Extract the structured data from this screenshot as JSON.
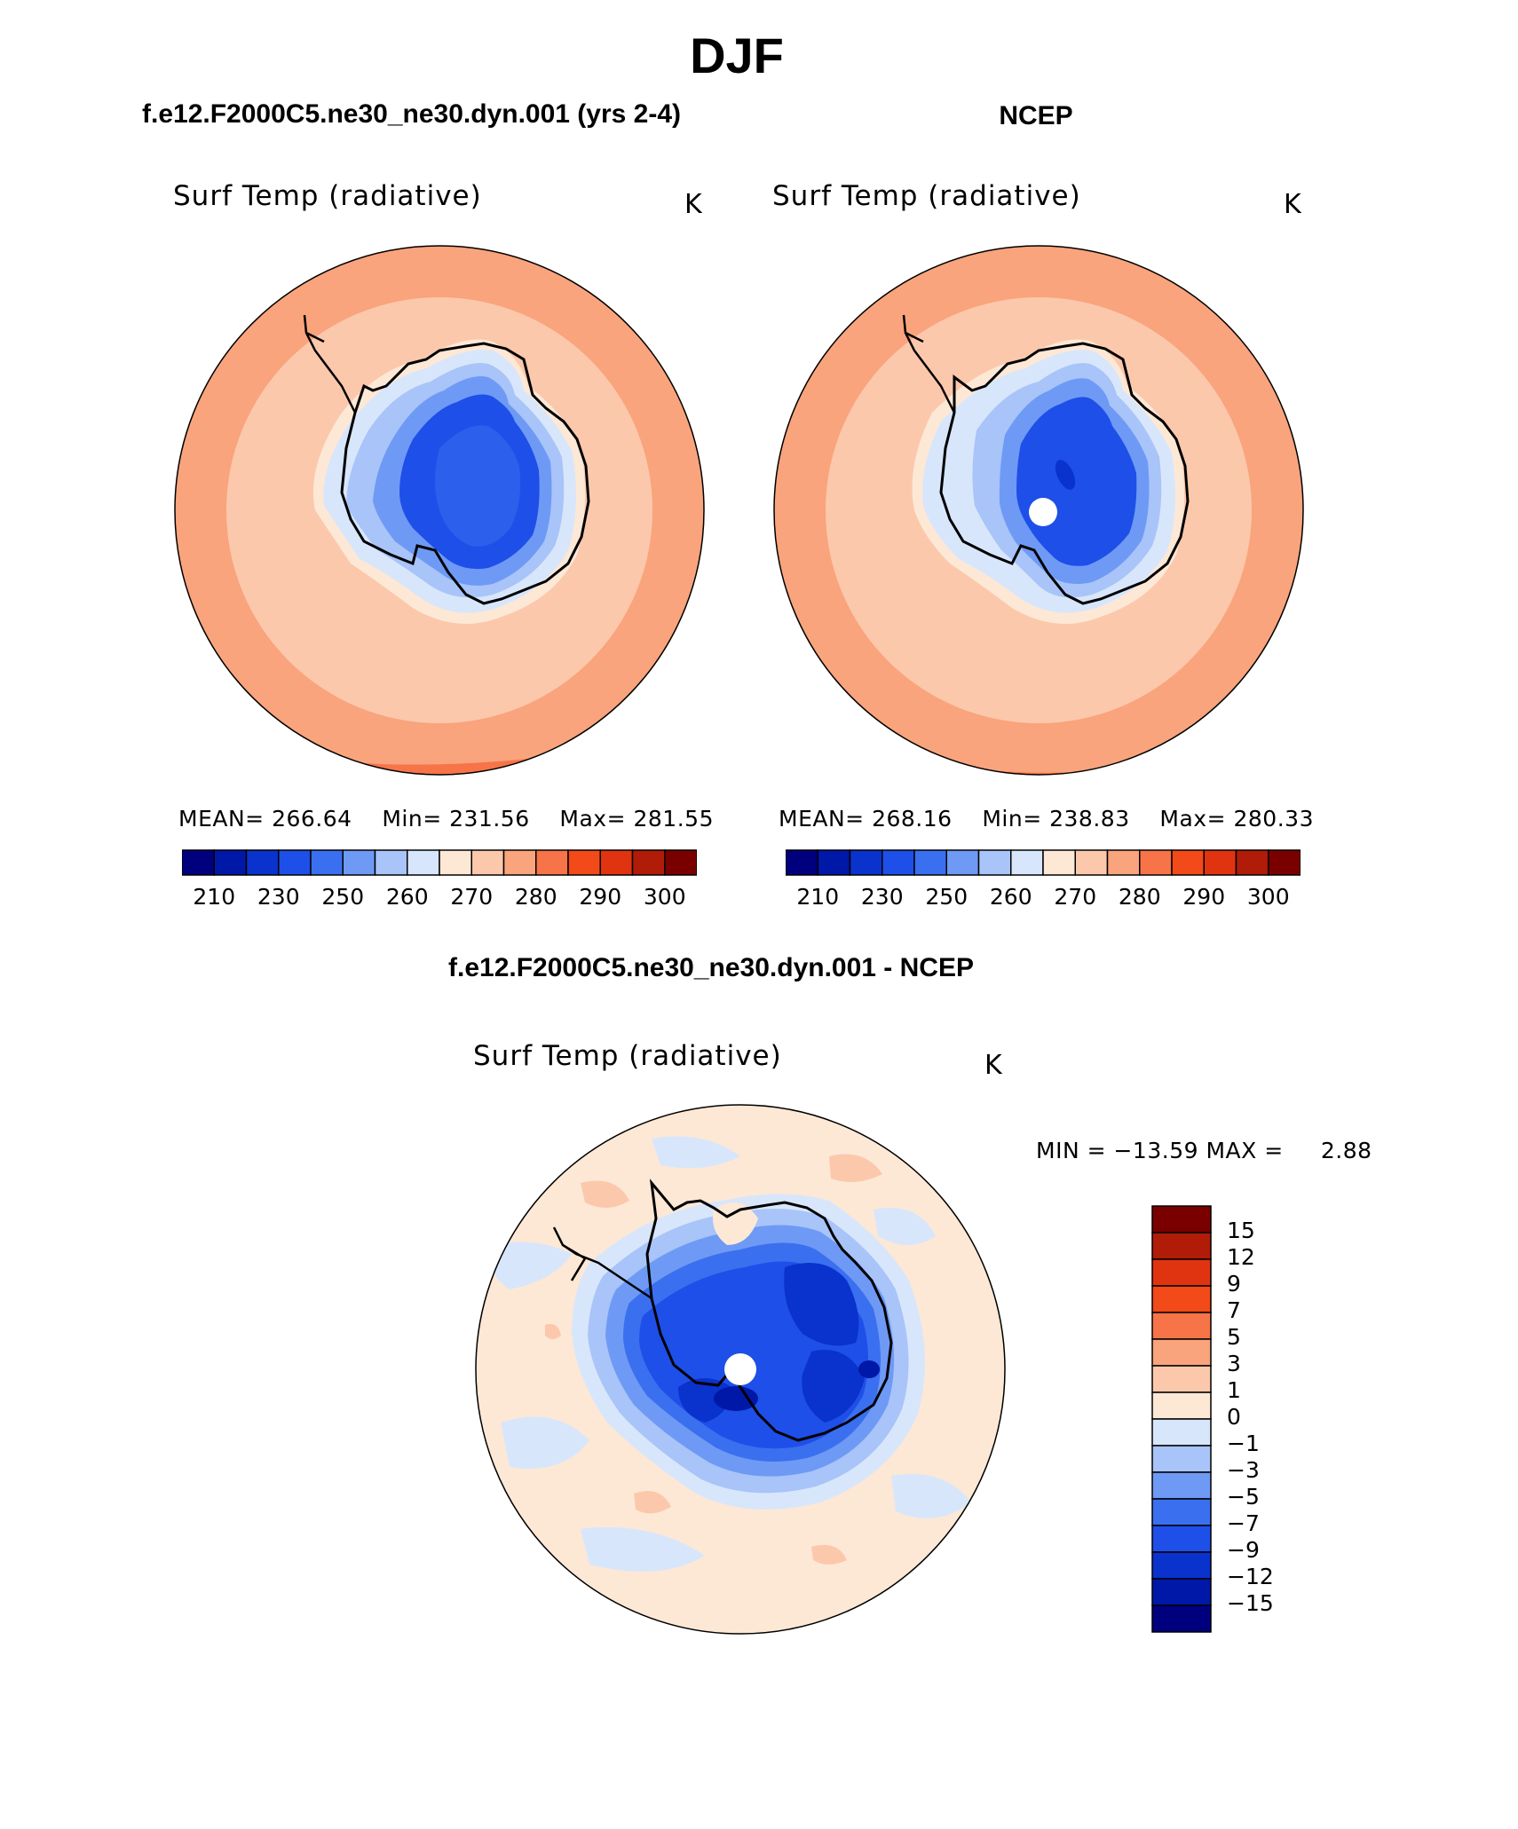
{
  "page": {
    "title": "DJF",
    "panel_left_title": "f.e12.F2000C5.ne30_ne30.dyn.001 (yrs 2-4)",
    "panel_right_title": "NCEP",
    "panel_diff_title": "f.e12.F2000C5.ne30_ne30.dyn.001 - NCEP"
  },
  "panels": {
    "left": {
      "variable": "Surf Temp (radiative)",
      "units": "K",
      "mean_label": "MEAN=",
      "mean": "266.64",
      "min_label": "Min=",
      "min": "231.56",
      "max_label": "Max=",
      "max": "281.55"
    },
    "right": {
      "variable": "Surf Temp (radiative)",
      "units": "K",
      "mean_label": "MEAN=",
      "mean": "268.16",
      "min_label": "Min=",
      "min": "238.83",
      "max_label": "Max=",
      "max": "280.33"
    },
    "diff": {
      "variable": "Surf Temp (radiative)",
      "units": "K",
      "minmax_text": "MIN = −13.59 MAX =",
      "max_value": "2.88"
    }
  },
  "colorbars": {
    "absolute": {
      "colors": [
        "#00007f",
        "#0018a8",
        "#0a32cc",
        "#1e4fe8",
        "#3a6ff0",
        "#6e9af5",
        "#a8c4f8",
        "#d8e6fb",
        "#fde8d6",
        "#fcc8ac",
        "#f9a47c",
        "#f77448",
        "#f24a18",
        "#e03410",
        "#b01c08",
        "#7a0000"
      ],
      "labels": [
        "210",
        "230",
        "250",
        "260",
        "270",
        "280",
        "290",
        "300"
      ]
    },
    "difference": {
      "colors": [
        "#00007f",
        "#0018a8",
        "#0a32cc",
        "#1e4fe8",
        "#3a6ff0",
        "#6e9af5",
        "#a8c4f8",
        "#d8e6fb",
        "#fde8d6",
        "#fcc8ac",
        "#f9a47c",
        "#f77448",
        "#f24a18",
        "#e03410",
        "#b01c08",
        "#7a0000"
      ],
      "labels": [
        "15",
        "12",
        "9",
        "7",
        "5",
        "3",
        "1",
        "0",
        "−1",
        "−3",
        "−5",
        "−7",
        "−9",
        "−12",
        "−15"
      ]
    }
  },
  "colors": {
    "ocean_warm": "#fcc8ac",
    "ocean_warmer": "#f9a47c",
    "ocean_edge": "#f77448",
    "ice_dark": "#1e4fe8",
    "ice_mid": "#3a6ff0",
    "ice_light": "#a8c4f8",
    "ice_pale": "#d8e6fb",
    "coast_cream": "#fde8d6",
    "diff_bg": "#fde8d6"
  }
}
